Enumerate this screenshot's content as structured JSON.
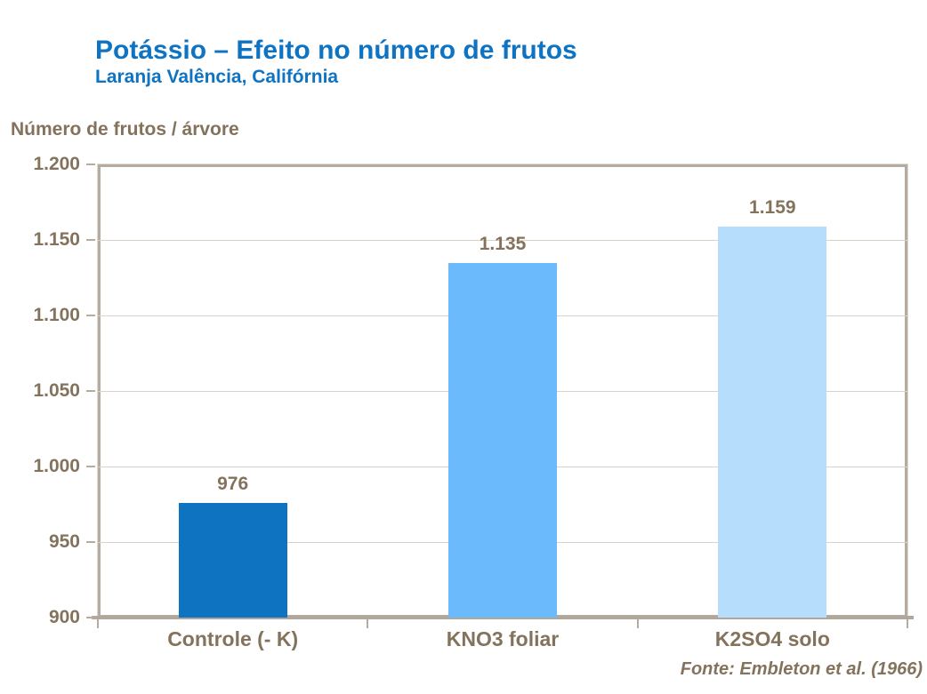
{
  "chart_data": {
    "type": "bar",
    "title": "Potássio – Efeito no número de frutos",
    "subtitle": "Laranja Valência, Califórnia",
    "ylabel": "Número de frutos / árvore",
    "xlabel": "",
    "categories": [
      "Controle (- K)",
      "KNO3 foliar",
      "K2SO4 solo"
    ],
    "values": [
      976,
      1135,
      1159
    ],
    "value_labels": [
      "976",
      "1.135",
      "1.159"
    ],
    "bar_colors": [
      "#0e74c2",
      "#6abafc",
      "#b6defc"
    ],
    "ylim": [
      900,
      1200
    ],
    "yticks": [
      900,
      950,
      1000,
      1050,
      1100,
      1150,
      1200
    ],
    "ytick_labels": [
      "900",
      "950",
      "1.000",
      "1.050",
      "1.100",
      "1.150",
      "1.200"
    ],
    "grid": true,
    "legend": false,
    "source": "Fonte: Embleton et al. (1966)",
    "colors": {
      "title_blue": "#0e73c2",
      "text_brown": "#84735c",
      "frame": "#b5aba0",
      "gridline": "#d9d2c9",
      "baseline": "#b2a79c",
      "background": "#ffffff"
    }
  }
}
